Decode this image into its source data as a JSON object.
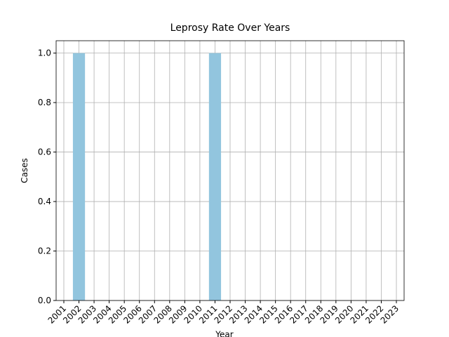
{
  "chart_data": {
    "type": "bar",
    "title": "Leprosy Rate Over Years",
    "xlabel": "Year",
    "ylabel": "Cases",
    "categories": [
      "2001",
      "2002",
      "2003",
      "2004",
      "2005",
      "2006",
      "2007",
      "2008",
      "2009",
      "2010",
      "2011",
      "2012",
      "2013",
      "2014",
      "2015",
      "2016",
      "2017",
      "2018",
      "2019",
      "2020",
      "2021",
      "2022",
      "2023"
    ],
    "values": [
      0,
      1,
      0,
      0,
      0,
      0,
      0,
      0,
      0,
      0,
      1,
      0,
      0,
      0,
      0,
      0,
      0,
      0,
      0,
      0,
      0,
      0,
      0
    ],
    "color": "#92c5de",
    "ylim": [
      0,
      1.05
    ],
    "yticks": [
      {
        "value": 0,
        "label": "0.0"
      },
      0.2,
      0.4,
      0.6,
      0.8,
      {
        "value": 1,
        "label": "1.0"
      }
    ],
    "grid": true
  }
}
